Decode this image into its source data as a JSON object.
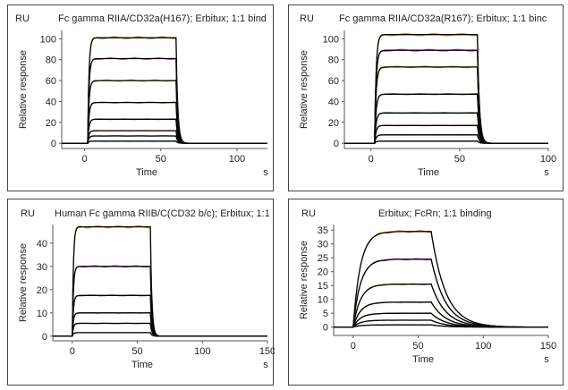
{
  "chart_data": [
    {
      "type": "line",
      "title": "Fc gamma RIIA/CD32a(H167); Erbitux; 1:1 bind",
      "y_unit": "RU",
      "ylabel": "Relative response",
      "xlabel": "Time",
      "x_unit": "s",
      "xlim": [
        -15,
        120
      ],
      "ylim": [
        -5,
        108
      ],
      "xticks": [
        0,
        50,
        100
      ],
      "yticks": [
        0,
        20,
        40,
        60,
        80,
        100
      ],
      "association_start": 2,
      "dissociation_start": 60,
      "kon": 1.2,
      "koff": 0.9,
      "series": [
        {
          "plateau": 101,
          "color": "#c8a020"
        },
        {
          "plateau": 81,
          "color": "#c060c0"
        },
        {
          "plateau": 60,
          "color": "#a0a030"
        },
        {
          "plateau": 39,
          "color": "#a07030"
        },
        {
          "plateau": 23,
          "color": "#20a040"
        },
        {
          "plateau": 12,
          "color": "#d07020"
        },
        {
          "plateau": 7,
          "color": "#4040c0"
        },
        {
          "plateau": 2,
          "color": "#20a0a0"
        }
      ]
    },
    {
      "type": "line",
      "title": "Fc gamma RIIA/CD32a(R167); Erbitux; 1:1 binc",
      "y_unit": "RU",
      "ylabel": "Relative response",
      "xlabel": "Time",
      "x_unit": "s",
      "xlim": [
        -15,
        100
      ],
      "ylim": [
        -5,
        108
      ],
      "xticks": [
        0,
        50,
        100
      ],
      "yticks": [
        0,
        20,
        40,
        60,
        80,
        100
      ],
      "association_start": 2,
      "dissociation_start": 60,
      "kon": 1.2,
      "koff": 0.9,
      "series": [
        {
          "plateau": 104,
          "color": "#c8a020"
        },
        {
          "plateau": 89,
          "color": "#c060c0"
        },
        {
          "plateau": 73,
          "color": "#a0a030"
        },
        {
          "plateau": 47,
          "color": "#a07030"
        },
        {
          "plateau": 29,
          "color": "#20a040"
        },
        {
          "plateau": 17,
          "color": "#d07020"
        },
        {
          "plateau": 8,
          "color": "#4040c0"
        },
        {
          "plateau": 2,
          "color": "#20a0a0"
        }
      ]
    },
    {
      "type": "line",
      "title": "Human Fc gamma RIIB/C(CD32 b/c); Erbitux; 1:1",
      "y_unit": "RU",
      "ylabel": "Relative response",
      "xlabel": "Time",
      "x_unit": "s",
      "xlim": [
        -15,
        150
      ],
      "ylim": [
        -2,
        48
      ],
      "xticks": [
        0,
        50,
        100,
        150
      ],
      "yticks": [
        0,
        10,
        20,
        30,
        40
      ],
      "association_start": 0,
      "dissociation_start": 60,
      "kon": 1.2,
      "koff": 0.9,
      "series": [
        {
          "plateau": 47,
          "color": "#c8a020"
        },
        {
          "plateau": 30,
          "color": "#c060c0"
        },
        {
          "plateau": 17.5,
          "color": "#20a040"
        },
        {
          "plateau": 10,
          "color": "#a07030"
        },
        {
          "plateau": 5.5,
          "color": "#4040c0"
        },
        {
          "plateau": 1.5,
          "color": "#20a0a0"
        }
      ]
    },
    {
      "type": "line",
      "title": "Erbitux; FcRn; 1:1 binding",
      "y_unit": "RU",
      "ylabel": "Relative response",
      "xlabel": "Time",
      "x_unit": "s",
      "xlim": [
        -15,
        150
      ],
      "ylim": [
        -3,
        37
      ],
      "xticks": [
        0,
        50,
        100,
        150
      ],
      "yticks": [
        0,
        5,
        10,
        15,
        20,
        25,
        30,
        35
      ],
      "association_start": 0,
      "dissociation_start": 60,
      "kon": 0.18,
      "koff": 0.09,
      "series": [
        {
          "plateau": 34.5,
          "color": "#c8a020"
        },
        {
          "plateau": 24.5,
          "color": "#c060c0"
        },
        {
          "plateau": 15.5,
          "color": "#a0a030"
        },
        {
          "plateau": 9,
          "color": "#a07030"
        },
        {
          "plateau": 5,
          "color": "#20a040"
        },
        {
          "plateau": 2.5,
          "color": "#d07020"
        },
        {
          "plateau": 0.8,
          "color": "#20a0a0"
        }
      ]
    }
  ]
}
